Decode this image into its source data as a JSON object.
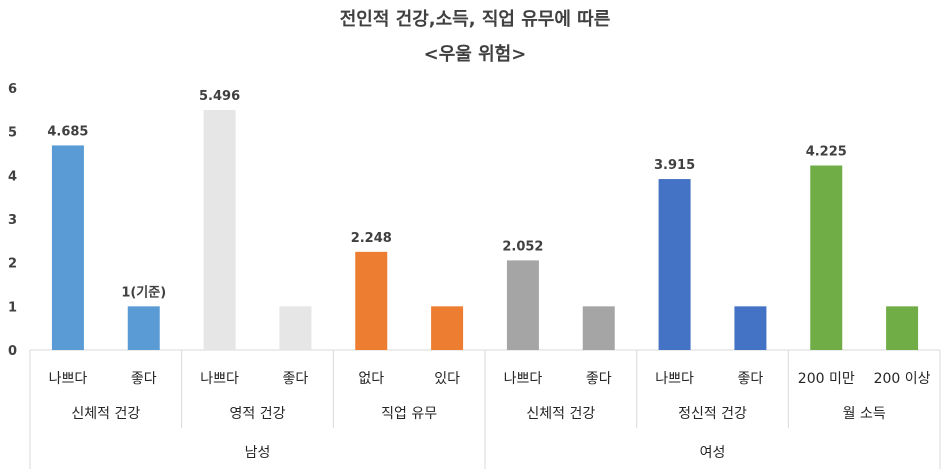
{
  "chart_data": {
    "type": "bar",
    "title_lines": [
      "전인적 건강,소득, 직업 유무에 따른",
      "<우울 위험>"
    ],
    "ylim": [
      0,
      6
    ],
    "yticks": [
      0,
      1,
      2,
      3,
      4,
      5,
      6
    ],
    "grid": false,
    "legend": "none",
    "categories": [
      "나쁘다",
      "좋다",
      "나쁘다",
      "좋다",
      "없다",
      "있다",
      "나쁘다",
      "좋다",
      "나쁘다",
      "좋다",
      "200 미만",
      "200 이상"
    ],
    "values": [
      4.685,
      1,
      5.496,
      1,
      2.248,
      1,
      2.052,
      1,
      3.915,
      1,
      4.225,
      1
    ],
    "data_labels": [
      "4.685",
      "1(기준)",
      "5.496",
      "",
      "2.248",
      "",
      "2.052",
      "",
      "3.915",
      "",
      "4.225",
      ""
    ],
    "colors": [
      "#5B9BD5",
      "#5B9BD5",
      "#E7E6E6",
      "#E7E6E6",
      "#ED7D31",
      "#ED7D31",
      "#A5A5A5",
      "#A5A5A5",
      "#4472C4",
      "#4472C4",
      "#70AD47",
      "#70AD47"
    ],
    "groups": [
      "신체적 건강",
      "영적 건강",
      "직업 유무",
      "신체적 건강",
      "정신적 건강",
      "월 소득"
    ],
    "supergroups": [
      "남성",
      "여성"
    ]
  }
}
